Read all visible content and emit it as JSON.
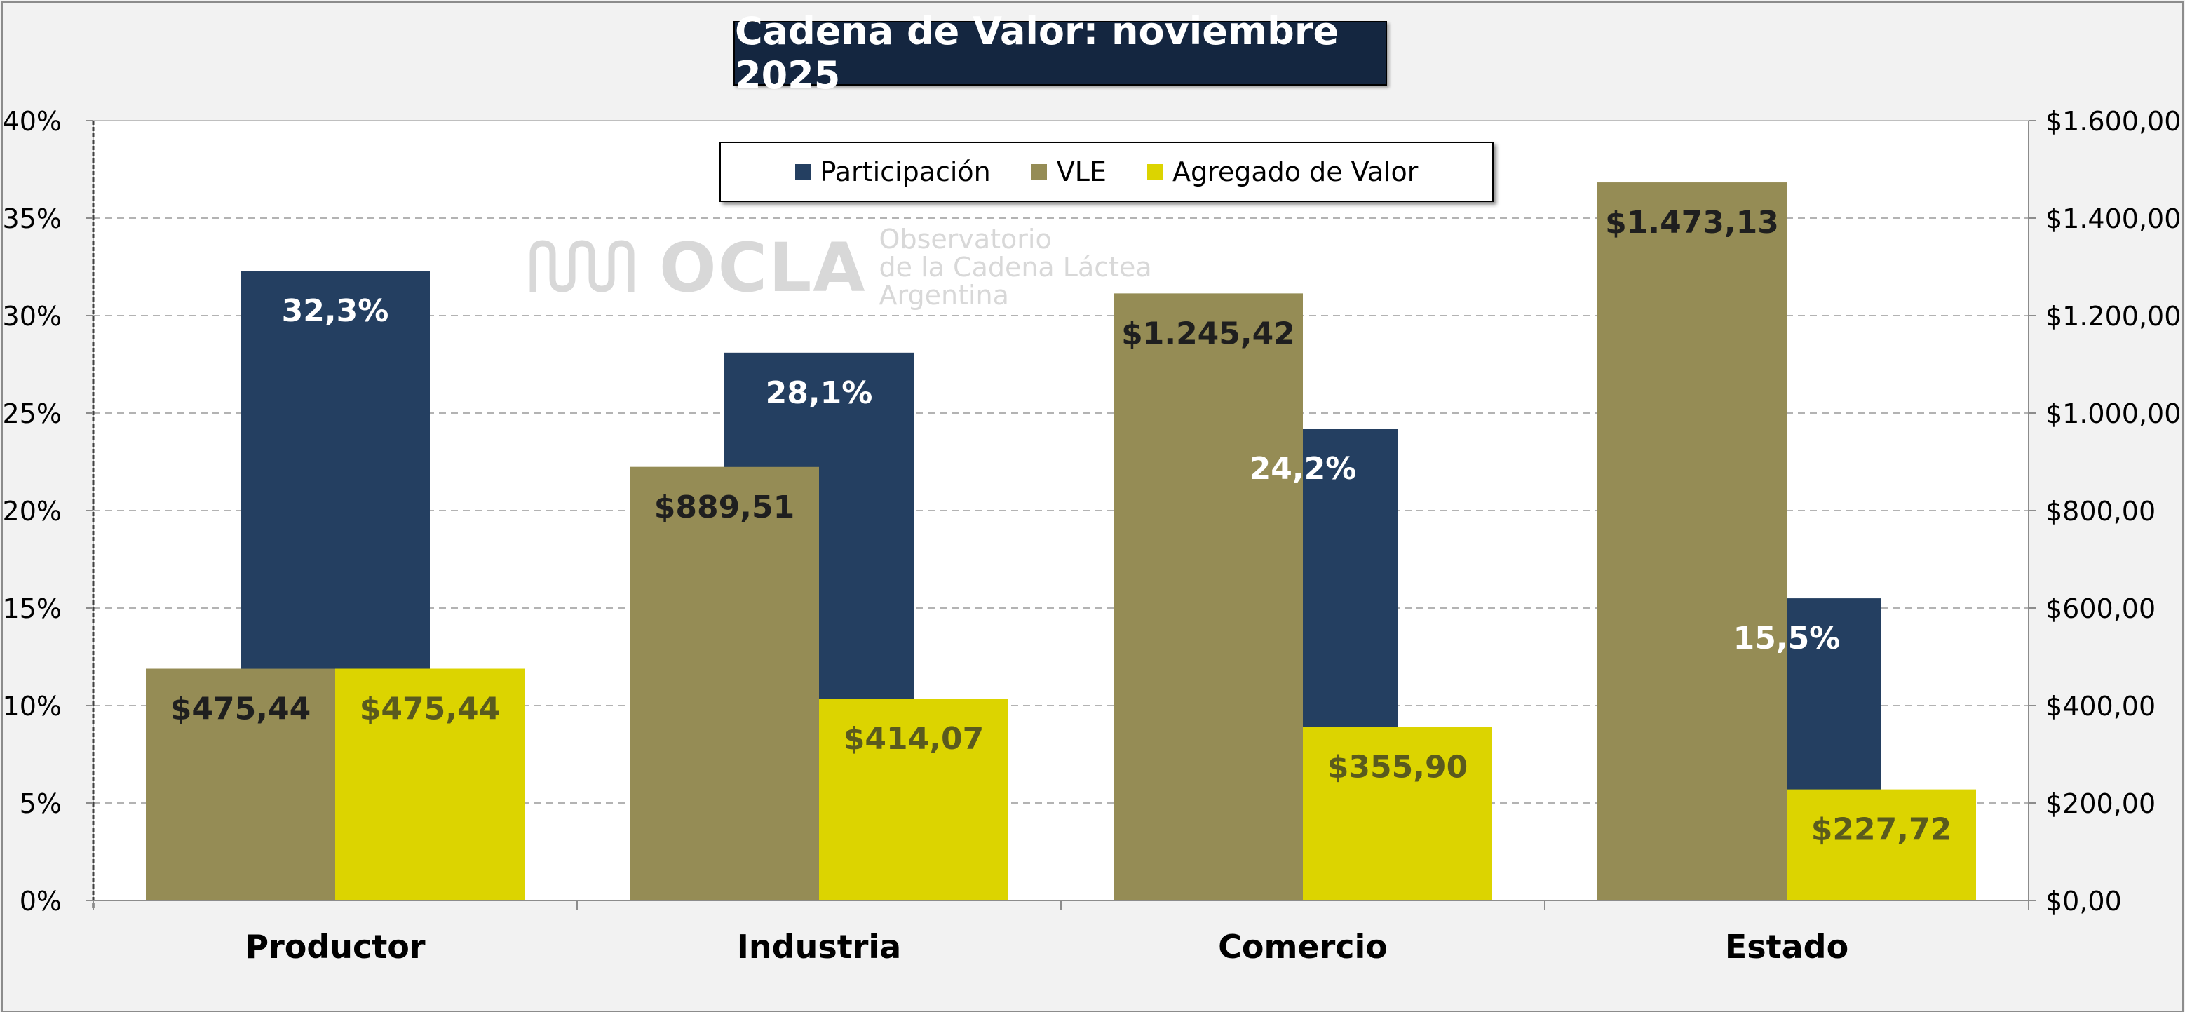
{
  "chart_data": {
    "type": "bar",
    "title": "Cadena de Valor: noviembre 2025",
    "categories": [
      "Productor",
      "Industria",
      "Comercio",
      "Estado"
    ],
    "series": [
      {
        "name": "VLE",
        "axis": "right",
        "color": "#958c55",
        "values": [
          475.44,
          889.51,
          1245.42,
          1473.13
        ],
        "labels": [
          "$475,44",
          "$889,51",
          "$1.245,42",
          "$1.473,13"
        ]
      },
      {
        "name": "Participación",
        "axis": "left",
        "color": "#243f61",
        "values": [
          32.3,
          28.1,
          24.2,
          15.5
        ],
        "labels": [
          "32,3%",
          "28,1%",
          "24,2%",
          "15,5%"
        ]
      },
      {
        "name": "Agregado de Valor",
        "axis": "right",
        "color": "#dcd400",
        "values": [
          475.44,
          414.07,
          355.9,
          227.72
        ],
        "labels": [
          "$475,44",
          "$414,07",
          "$355,90",
          "$227,72"
        ]
      }
    ],
    "legend": [
      "Participación",
      "VLE",
      "Agregado de Valor"
    ],
    "left_axis": {
      "min": 0,
      "max": 40,
      "step": 5,
      "tick_labels": [
        "0%",
        "5%",
        "10%",
        "15%",
        "20%",
        "25%",
        "30%",
        "35%",
        "40%"
      ]
    },
    "right_axis": {
      "min": 0,
      "max": 1600,
      "step": 200,
      "tick_labels": [
        "$0,00",
        "$200,00",
        "$400,00",
        "$600,00",
        "$800,00",
        "$1.000,00",
        "$1.200,00",
        "$1.400,00",
        "$1.600,00"
      ]
    },
    "grid": true,
    "legend_position": "top-center"
  },
  "watermark": {
    "logo_text": "OCLA",
    "lines": [
      "Observatorio",
      "de la Cadena Láctea",
      "Argentina"
    ]
  }
}
